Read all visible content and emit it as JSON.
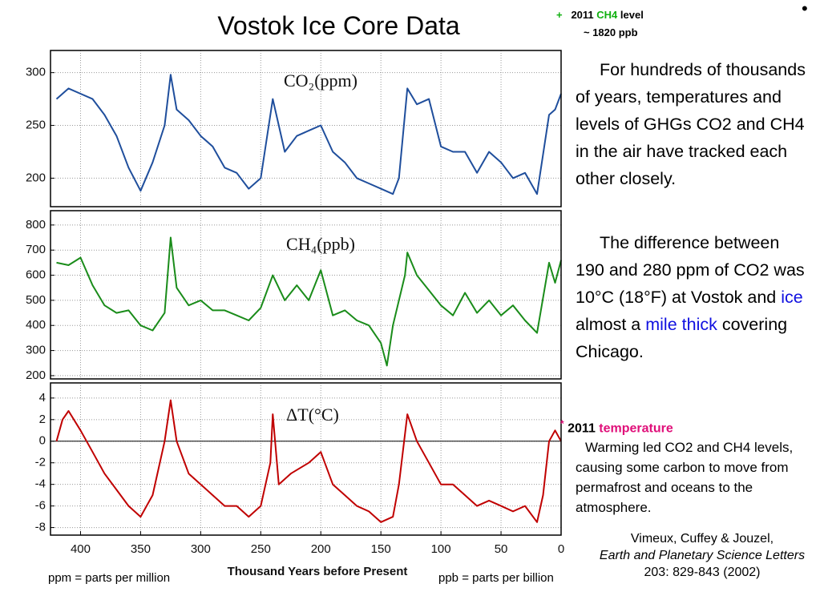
{
  "title": "Vostok Ice Core Data",
  "bullet": "•",
  "ch4_note": {
    "marker": "+",
    "year": "2011",
    "gas": "CH4",
    "rest": "level",
    "value": "~ 1820 ppb"
  },
  "paragraph_1": "For hundreds of thousands of years, temperatures and levels of GHGs CO2 and CH4 in the air have tracked each other closely.",
  "paragraph_2": [
    "The difference between 190 and 280 ppm of CO2 was 10°C (18°F) at Vostok and",
    "ice",
    "almost a",
    "mile thick",
    "covering Chicago."
  ],
  "temp_note": {
    "marker": "*",
    "year": "2011",
    "term": "temperature"
  },
  "warming_text": "Warming led CO2 and CH4 levels, causing some carbon to move from permafrost and oceans to the atmosphere.",
  "citation": {
    "authors": "Vimeux, Cuffey & Jouzel,",
    "journal": "Earth and Planetary Science Letters",
    "reference": "203: 829-843 (2002)"
  },
  "footnote_ppm": "ppm = parts per million",
  "footnote_ppb": "ppb = parts per billion",
  "chart_data": [
    {
      "type": "line",
      "label": "CO₂(ppm)",
      "color": "#1f4e9c",
      "grid": true,
      "xlim": [
        425,
        0
      ],
      "ylim": [
        173,
        321
      ],
      "yticks": [
        200,
        250,
        300
      ],
      "x": [
        420,
        410,
        400,
        390,
        380,
        370,
        360,
        350,
        340,
        330,
        325,
        320,
        310,
        300,
        290,
        280,
        270,
        260,
        250,
        240,
        230,
        220,
        210,
        200,
        190,
        180,
        170,
        160,
        150,
        140,
        135,
        128,
        120,
        110,
        100,
        90,
        80,
        70,
        60,
        50,
        40,
        30,
        20,
        10,
        5,
        0
      ],
      "values": [
        275,
        285,
        280,
        275,
        260,
        240,
        210,
        188,
        215,
        250,
        298,
        265,
        255,
        240,
        230,
        210,
        205,
        190,
        200,
        275,
        225,
        240,
        245,
        250,
        225,
        215,
        200,
        195,
        190,
        185,
        200,
        285,
        270,
        275,
        230,
        225,
        225,
        205,
        225,
        215,
        200,
        205,
        185,
        260,
        265,
        280
      ]
    },
    {
      "type": "line",
      "label": "CH₄(ppb)",
      "color": "#1a8c1a",
      "grid": true,
      "xlim": [
        425,
        0
      ],
      "ylim": [
        187,
        857
      ],
      "yticks": [
        200,
        300,
        400,
        500,
        600,
        700,
        800
      ],
      "x": [
        420,
        410,
        400,
        390,
        380,
        370,
        360,
        350,
        340,
        330,
        325,
        320,
        310,
        300,
        290,
        280,
        270,
        260,
        250,
        240,
        230,
        220,
        210,
        200,
        190,
        180,
        170,
        160,
        150,
        145,
        140,
        130,
        128,
        120,
        110,
        100,
        90,
        80,
        70,
        60,
        50,
        40,
        30,
        20,
        10,
        5,
        0
      ],
      "values": [
        650,
        640,
        670,
        560,
        480,
        450,
        460,
        400,
        380,
        450,
        750,
        550,
        480,
        500,
        460,
        460,
        440,
        420,
        470,
        600,
        500,
        560,
        500,
        620,
        440,
        460,
        420,
        400,
        330,
        240,
        400,
        600,
        690,
        600,
        540,
        480,
        440,
        530,
        450,
        500,
        440,
        480,
        420,
        370,
        650,
        570,
        660
      ]
    },
    {
      "type": "line",
      "label": "ΔT(°C)",
      "color": "#c00000",
      "grid": true,
      "hline": 0,
      "xlabel": "Thousand Years before Present",
      "xlim": [
        425,
        0
      ],
      "ylim": [
        -8.7,
        5.4
      ],
      "yticks": [
        -8,
        -6,
        -4,
        -2,
        0,
        2,
        4
      ],
      "xticks": [
        400,
        350,
        300,
        250,
        200,
        150,
        100,
        50,
        0
      ],
      "x": [
        420,
        415,
        410,
        400,
        390,
        380,
        370,
        360,
        350,
        340,
        330,
        325,
        320,
        310,
        300,
        290,
        280,
        270,
        260,
        250,
        242,
        240,
        235,
        225,
        210,
        200,
        190,
        180,
        170,
        160,
        150,
        140,
        135,
        128,
        120,
        110,
        100,
        90,
        80,
        70,
        60,
        50,
        40,
        30,
        20,
        15,
        10,
        5,
        0
      ],
      "values": [
        0,
        2,
        2.8,
        1,
        -1,
        -3,
        -4.5,
        -6,
        -7,
        -5,
        0,
        3.8,
        0,
        -3,
        -4,
        -5,
        -6,
        -6,
        -7,
        -6,
        -2,
        2.5,
        -4,
        -3,
        -2,
        -1,
        -4,
        -5,
        -6,
        -6.5,
        -7.5,
        -7,
        -4,
        2.5,
        0,
        -2,
        -4,
        -4,
        -5,
        -6,
        -5.5,
        -6,
        -6.5,
        -6,
        -7.5,
        -5,
        0,
        1,
        0
      ]
    }
  ]
}
